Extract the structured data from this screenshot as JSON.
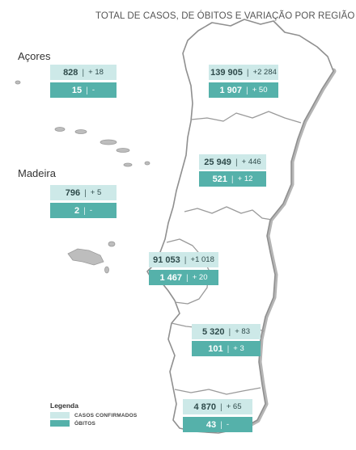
{
  "title": "TOTAL DE CASOS, DE ÓBITOS E VARIAÇÃO POR REGIÃO",
  "colors": {
    "cases": "#cde9e8",
    "deaths": "#55b1aa",
    "map_fill": "#ffffff",
    "map_stroke": "#8f8f8f",
    "coast_shadow": "#b5b5b5"
  },
  "regions": {
    "acores": {
      "name": "Açores",
      "cases": "828",
      "cases_var": "+ 18",
      "deaths": "15",
      "deaths_var": "-"
    },
    "madeira": {
      "name": "Madeira",
      "cases": "796",
      "cases_var": "+ 5",
      "deaths": "2",
      "deaths_var": "-"
    },
    "norte": {
      "cases": "139 905",
      "cases_var": "+2 284",
      "deaths": "1 907",
      "deaths_var": "+ 50"
    },
    "centro": {
      "cases": "25 949",
      "cases_var": "+ 446",
      "deaths": "521",
      "deaths_var": "+ 12"
    },
    "lisboa": {
      "cases": "91 053",
      "cases_var": "+1 018",
      "deaths": "1 467",
      "deaths_var": "+ 20"
    },
    "alentejo": {
      "cases": "5 320",
      "cases_var": "+ 83",
      "deaths": "101",
      "deaths_var": "+ 3"
    },
    "algarve": {
      "cases": "4 870",
      "cases_var": "+ 65",
      "deaths": "43",
      "deaths_var": "-"
    }
  },
  "legend": {
    "title": "Legenda",
    "cases_label": "CASOS CONFIRMADOS",
    "deaths_label": "ÓBITOS"
  }
}
